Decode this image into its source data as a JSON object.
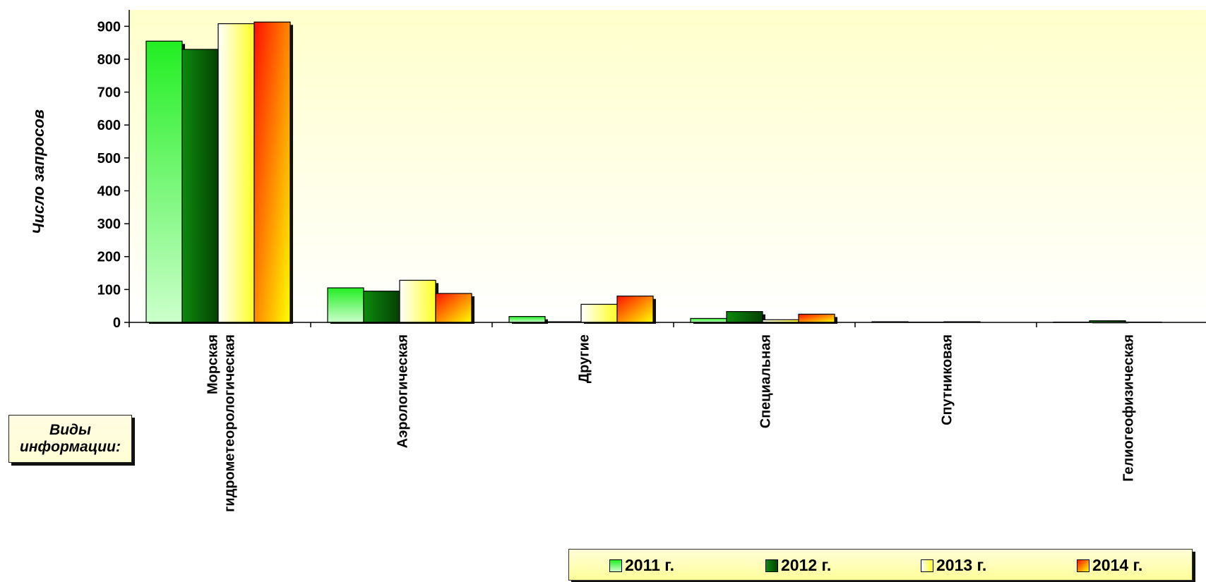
{
  "chart_data": {
    "type": "bar",
    "title": "",
    "xlabel": "Виды информации:",
    "xlabel_lines": [
      "Виды",
      "информации:"
    ],
    "ylabel": "Число запросов",
    "ylim": [
      0,
      950
    ],
    "yticks": [
      0,
      100,
      200,
      300,
      400,
      500,
      600,
      700,
      800,
      900
    ],
    "grid": false,
    "legend_position": "bottom-right",
    "categories": [
      "Морская гидрометеорологическая",
      "Аэрологическая",
      "Другие",
      "Специальная",
      "Спутниковая",
      "Гелиогеофизическая"
    ],
    "category_lines": [
      [
        "Морская",
        "гидрометеорологическая"
      ],
      [
        "Аэрологическая"
      ],
      [
        "Другие"
      ],
      [
        "Специальная"
      ],
      [
        "Спутниковая"
      ],
      [
        "Гелиогеофизическая"
      ]
    ],
    "series": [
      {
        "name": "2011 г.",
        "values": [
          855,
          105,
          18,
          12,
          2,
          1
        ],
        "color_top": "#22ee22",
        "color_bottom": "#ccffcc"
      },
      {
        "name": "2012 г.",
        "values": [
          830,
          95,
          2,
          33,
          1,
          5
        ],
        "color_top": "#0a7a0a",
        "color_bottom": "#064806"
      },
      {
        "name": "2013 г.",
        "values": [
          908,
          128,
          55,
          8,
          2,
          1
        ],
        "color_top": "#ffff33",
        "color_bottom": "#ffffff"
      },
      {
        "name": "2014 г.",
        "values": [
          913,
          88,
          80,
          25,
          0,
          0
        ],
        "color_top": "#ff2200",
        "color_bottom": "#ffee00"
      }
    ],
    "plot_background": [
      "#fffff4",
      "#ffffc8"
    ]
  }
}
